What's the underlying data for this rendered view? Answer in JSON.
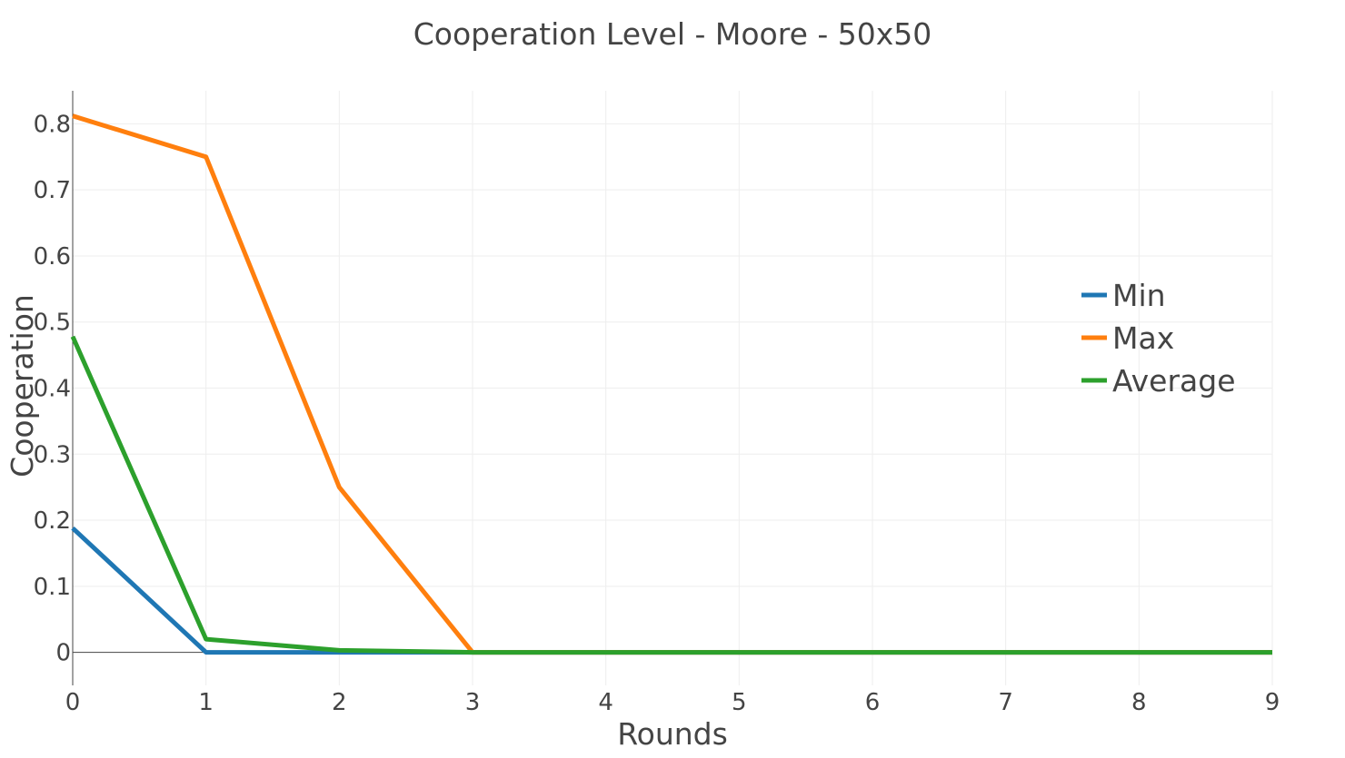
{
  "chart_data": {
    "type": "line",
    "title": "Cooperation Level - Moore - 50x50",
    "xlabel": "Rounds",
    "ylabel": "Cooperation",
    "x": [
      0,
      1,
      2,
      3,
      4,
      5,
      6,
      7,
      8,
      9
    ],
    "xlim": [
      0,
      9
    ],
    "ylim": [
      -0.05,
      0.85
    ],
    "xticks": [
      "0",
      "1",
      "2",
      "3",
      "4",
      "5",
      "6",
      "7",
      "8",
      "9"
    ],
    "yticks": [
      "0",
      "0.1",
      "0.2",
      "0.3",
      "0.4",
      "0.5",
      "0.6",
      "0.7",
      "0.8"
    ],
    "grid": true,
    "legend_position": "right",
    "series": [
      {
        "name": "Min",
        "color": "#1f77b4",
        "values": [
          0.188,
          0.0,
          0.0,
          0.0,
          0.0,
          0.0,
          0.0,
          0.0,
          0.0,
          0.0
        ]
      },
      {
        "name": "Max",
        "color": "#ff7f0e",
        "values": [
          0.812,
          0.75,
          0.25,
          0.0,
          0.0,
          0.0,
          0.0,
          0.0,
          0.0,
          0.0
        ]
      },
      {
        "name": "Average",
        "color": "#2ca02c",
        "values": [
          0.478,
          0.02,
          0.003,
          0.0,
          0.0,
          0.0,
          0.0,
          0.0,
          0.0,
          0.0
        ]
      }
    ]
  }
}
